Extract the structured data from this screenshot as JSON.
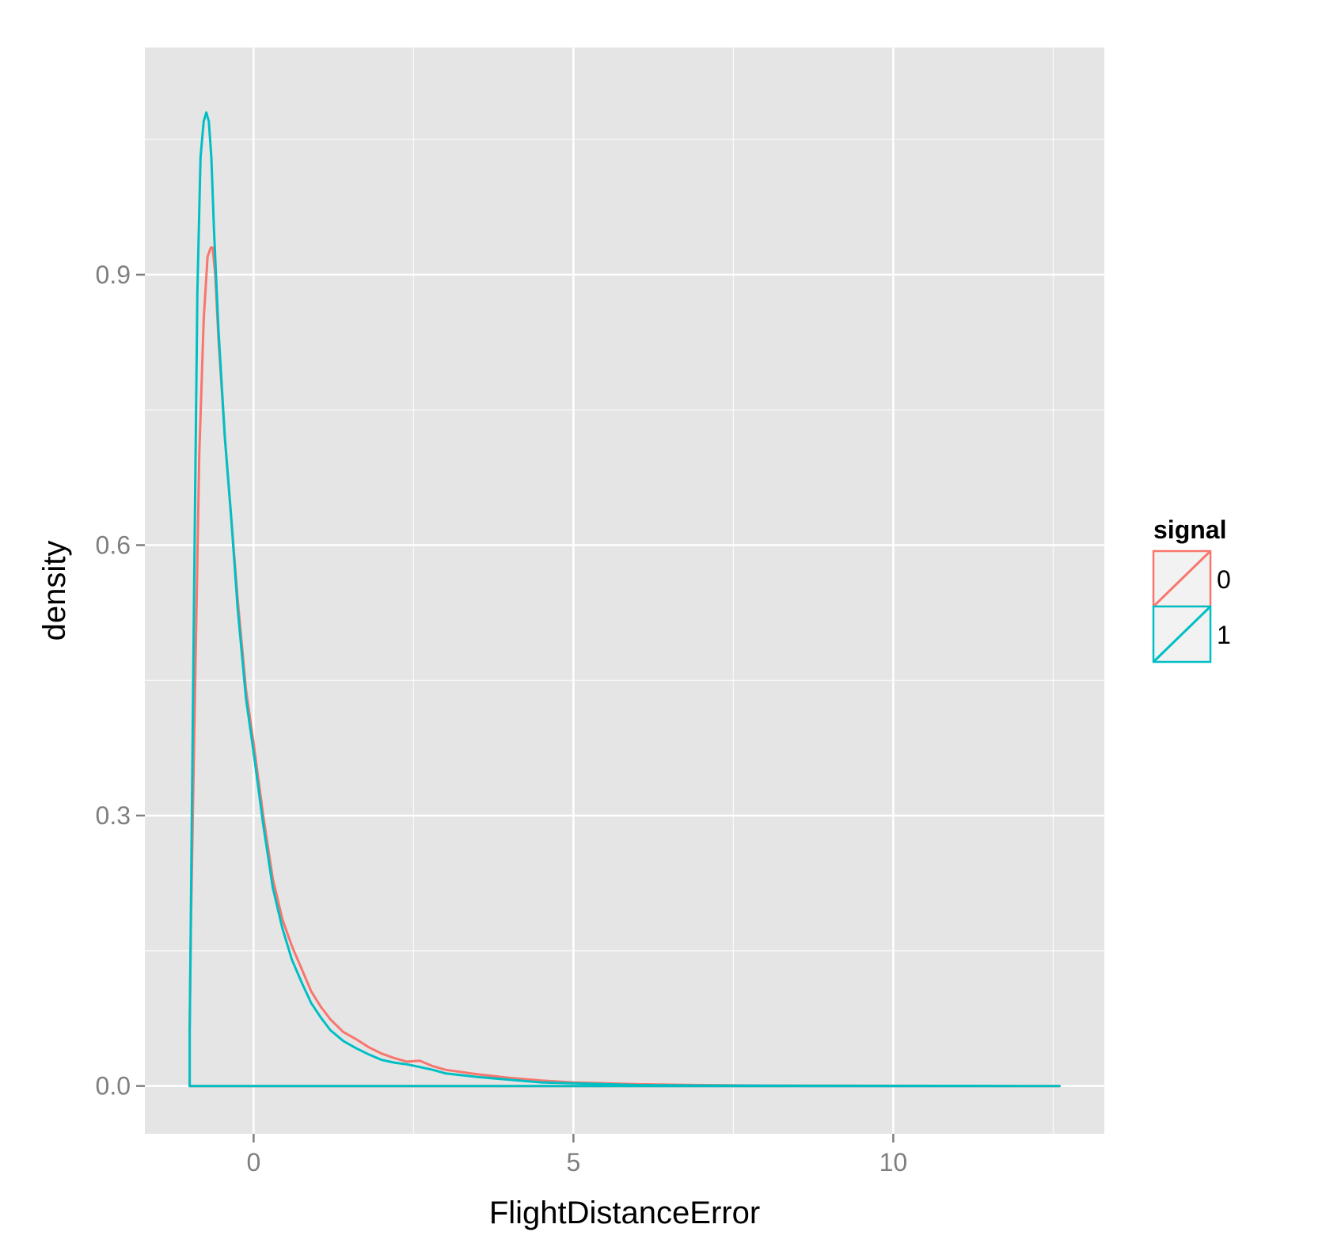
{
  "chart_data": {
    "type": "line",
    "title": "",
    "xlabel": "FlightDistanceError",
    "ylabel": "density",
    "xlim": [
      -1.7,
      13.3
    ],
    "ylim": [
      -0.053,
      1.152
    ],
    "x_ticks": [
      0,
      5,
      10
    ],
    "x_tick_labels": [
      "0",
      "5",
      "10"
    ],
    "y_ticks": [
      0.0,
      0.3,
      0.6,
      0.9
    ],
    "y_tick_labels": [
      "0.0",
      "0.3",
      "0.6",
      "0.9"
    ],
    "grid": true,
    "legend": {
      "title": "signal",
      "position": "right"
    },
    "colors": {
      "panel": "#e5e5e5",
      "grid": "#ffffff",
      "tick": "#7f7f7f",
      "key_bg": "#f2f2f2"
    },
    "series": [
      {
        "name": "0",
        "color": "#f8766d",
        "x": [
          -1.0,
          -1.0,
          -0.98,
          -0.92,
          -0.85,
          -0.78,
          -0.72,
          -0.67,
          -0.64,
          -0.6,
          -0.55,
          -0.45,
          -0.35,
          -0.25,
          -0.12,
          0.0,
          0.15,
          0.3,
          0.45,
          0.6,
          0.75,
          0.9,
          1.05,
          1.2,
          1.4,
          1.6,
          1.8,
          2.0,
          2.2,
          2.4,
          2.6,
          2.8,
          3.0,
          3.5,
          4.0,
          4.5,
          5.0,
          5.5,
          6.0,
          7.0,
          8.0,
          9.0,
          10.0,
          11.0,
          12.0,
          12.6,
          12.6
        ],
        "y": [
          0.0,
          0.06,
          0.18,
          0.42,
          0.7,
          0.85,
          0.92,
          0.93,
          0.93,
          0.9,
          0.83,
          0.72,
          0.63,
          0.54,
          0.44,
          0.38,
          0.3,
          0.23,
          0.185,
          0.155,
          0.13,
          0.105,
          0.088,
          0.074,
          0.06,
          0.052,
          0.043,
          0.036,
          0.031,
          0.027,
          0.028,
          0.022,
          0.018,
          0.013,
          0.009,
          0.006,
          0.004,
          0.003,
          0.002,
          0.001,
          0.0005,
          0.0003,
          0.0002,
          0.0001,
          0.0,
          0.0,
          0.0
        ]
      },
      {
        "name": "1",
        "color": "#00bfc4",
        "x": [
          -1.0,
          -1.0,
          -0.98,
          -0.93,
          -0.88,
          -0.83,
          -0.78,
          -0.74,
          -0.7,
          -0.66,
          -0.62,
          -0.55,
          -0.45,
          -0.35,
          -0.25,
          -0.12,
          0.0,
          0.15,
          0.3,
          0.45,
          0.6,
          0.75,
          0.9,
          1.05,
          1.2,
          1.4,
          1.6,
          1.8,
          2.0,
          2.2,
          2.4,
          2.6,
          2.8,
          3.0,
          3.5,
          4.0,
          4.5,
          5.0,
          5.5,
          6.0,
          7.0,
          8.0,
          9.0,
          10.0,
          11.0,
          12.0,
          12.6,
          12.6
        ],
        "y": [
          0.0,
          0.06,
          0.2,
          0.55,
          0.88,
          1.03,
          1.07,
          1.08,
          1.07,
          1.03,
          0.95,
          0.84,
          0.72,
          0.63,
          0.53,
          0.43,
          0.37,
          0.29,
          0.22,
          0.175,
          0.14,
          0.115,
          0.092,
          0.076,
          0.062,
          0.05,
          0.042,
          0.035,
          0.029,
          0.026,
          0.024,
          0.021,
          0.018,
          0.014,
          0.01,
          0.007,
          0.004,
          0.003,
          0.002,
          0.001,
          0.0005,
          0.0003,
          0.0002,
          0.0001,
          0.0001,
          0.0,
          0.0,
          0.0
        ]
      }
    ]
  }
}
